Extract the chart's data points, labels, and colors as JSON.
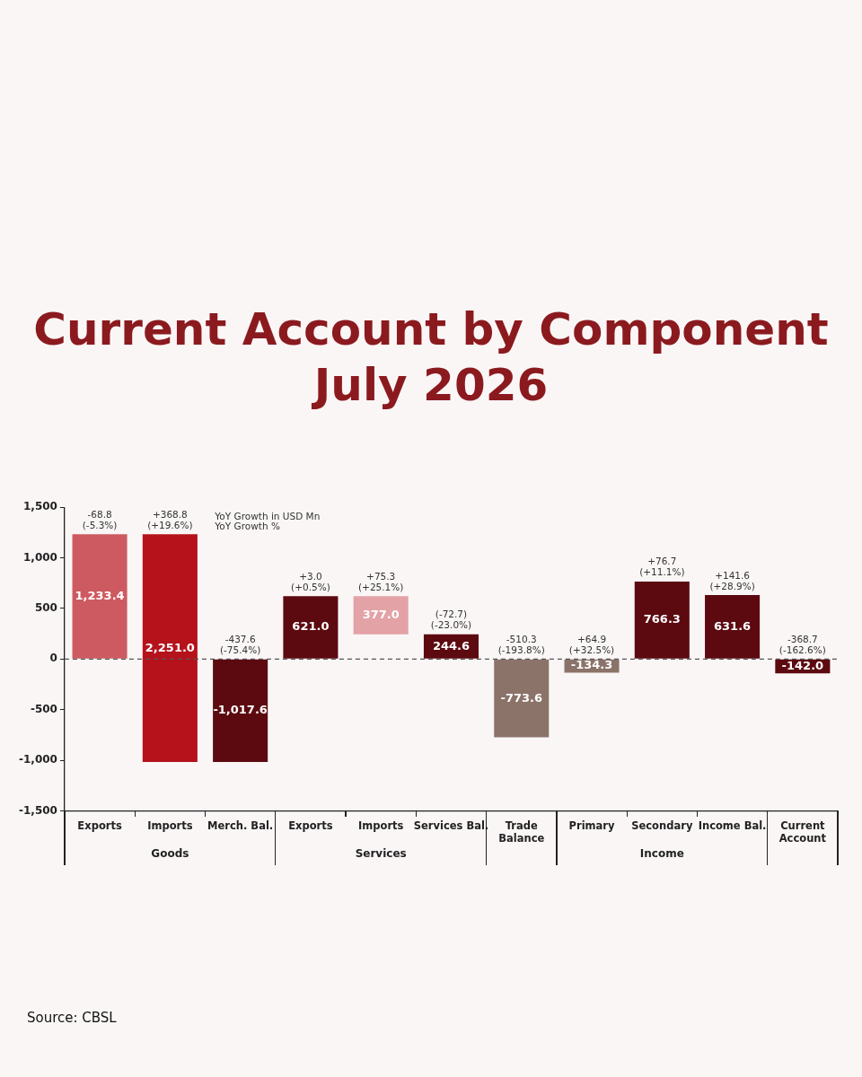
{
  "chart_data": {
    "type": "bar",
    "title": "Current Account by Component",
    "subtitle": "July 2026",
    "categories": [
      "Exports",
      "Imports",
      "Merch. Bal.",
      "Exports",
      "Imports",
      "Services Bal.",
      "Trade\nBalance",
      "Primary",
      "Secondary",
      "Income Bal.",
      "Current\nAccount"
    ],
    "values": [
      1233.4,
      2251.0,
      -1017.6,
      621.0,
      377.0,
      244.6,
      -773.6,
      -134.3,
      766.3,
      631.6,
      -142.0
    ],
    "base": [
      0,
      -1017.6,
      0,
      0,
      244.6,
      0,
      0,
      0,
      0,
      0,
      0
    ],
    "colors": [
      "#cd5a60",
      "#b5121b",
      "#5c0a10",
      "#5c0a10",
      "#e3a2a6",
      "#5c0a10",
      "#8b7369",
      "#8b7369",
      "#5c0a10",
      "#5c0a10",
      "#5c0a10"
    ],
    "value_labels": [
      "1,233.4",
      "2,251.0",
      "-1,017.6",
      "621.0",
      "377.0",
      "244.6",
      "-773.6",
      "-134.3",
      "766.3",
      "631.6",
      "-142.0"
    ],
    "ylim": [
      -1500,
      1500
    ],
    "yticks": [
      {
        "value": -1500,
        "label": "-1,500"
      },
      {
        "value": -1000,
        "label": "-1,000"
      },
      -500,
      0,
      500,
      {
        "value": 1000,
        "label": "1,000"
      },
      {
        "value": 1500,
        "label": "1,500"
      }
    ],
    "grid": false,
    "legend": false,
    "ref_lines": [
      {
        "axis": "y",
        "value": 0,
        "color": "#555555",
        "line_style": "dashed"
      }
    ],
    "annotations": [
      "YoY Growth in USD Mn\nYoY Growth %",
      "-68.8\n(-5.3%)",
      "+368.8\n(+19.6%)",
      "-437.6\n(-75.4%)",
      "+3.0\n(+0.5%)",
      "+75.3\n(+25.1%)",
      "(-72.7)\n(-23.0%)",
      "-510.3\n(-193.8%)",
      "+64.9\n(+32.5%)",
      "+76.7\n(+11.1%)",
      "+141.6\n(+28.9%)",
      "-368.7\n(-162.6%)",
      "Goods",
      "Services",
      "Income",
      "Source: CBSL"
    ]
  }
}
